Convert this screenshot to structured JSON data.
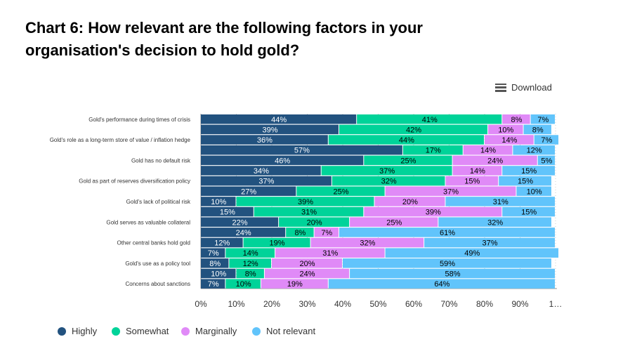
{
  "title": "Chart 6: How relevant are the following factors in your organisation's decision to hold gold?",
  "download_label": "Download",
  "chart_data": {
    "type": "bar",
    "stacked": "percent",
    "orientation": "horizontal",
    "categories": [
      "Gold's performance during times of crisis",
      "",
      "Gold's role as a long-term store of value / inflation hedge",
      "",
      "Gold has no default risk",
      "",
      "Gold as part of reserves diversification policy",
      "",
      "Gold's lack of political risk",
      "",
      "Gold serves as valuable collateral",
      "",
      "Other central banks hold gold",
      "",
      "Gold's use as a policy tool",
      "",
      "Concerns about sanctions"
    ],
    "series": [
      {
        "name": "Highly",
        "color": "#22527f",
        "values": [
          44,
          39,
          36,
          57,
          46,
          34,
          37,
          27,
          10,
          15,
          22,
          24,
          12,
          7,
          8,
          10,
          7
        ]
      },
      {
        "name": "Somewhat",
        "color": "#00d399",
        "values": [
          41,
          42,
          44,
          17,
          25,
          37,
          32,
          25,
          39,
          31,
          20,
          8,
          19,
          14,
          12,
          8,
          10
        ]
      },
      {
        "name": "Marginally",
        "color": "#e08af7",
        "values": [
          8,
          10,
          14,
          14,
          24,
          14,
          15,
          37,
          20,
          39,
          25,
          7,
          32,
          31,
          20,
          24,
          19
        ]
      },
      {
        "name": "Not relevant",
        "color": "#61c4fb",
        "values": [
          7,
          8,
          7,
          12,
          5,
          15,
          15,
          10,
          31,
          15,
          32,
          61,
          37,
          49,
          59,
          58,
          64
        ]
      }
    ],
    "xticks": [
      "0%",
      "10%",
      "20%",
      "30%",
      "40%",
      "50%",
      "60%",
      "70%",
      "80%",
      "90%",
      "1…"
    ],
    "xlim": [
      0,
      100
    ],
    "legend": "bottom-left"
  }
}
